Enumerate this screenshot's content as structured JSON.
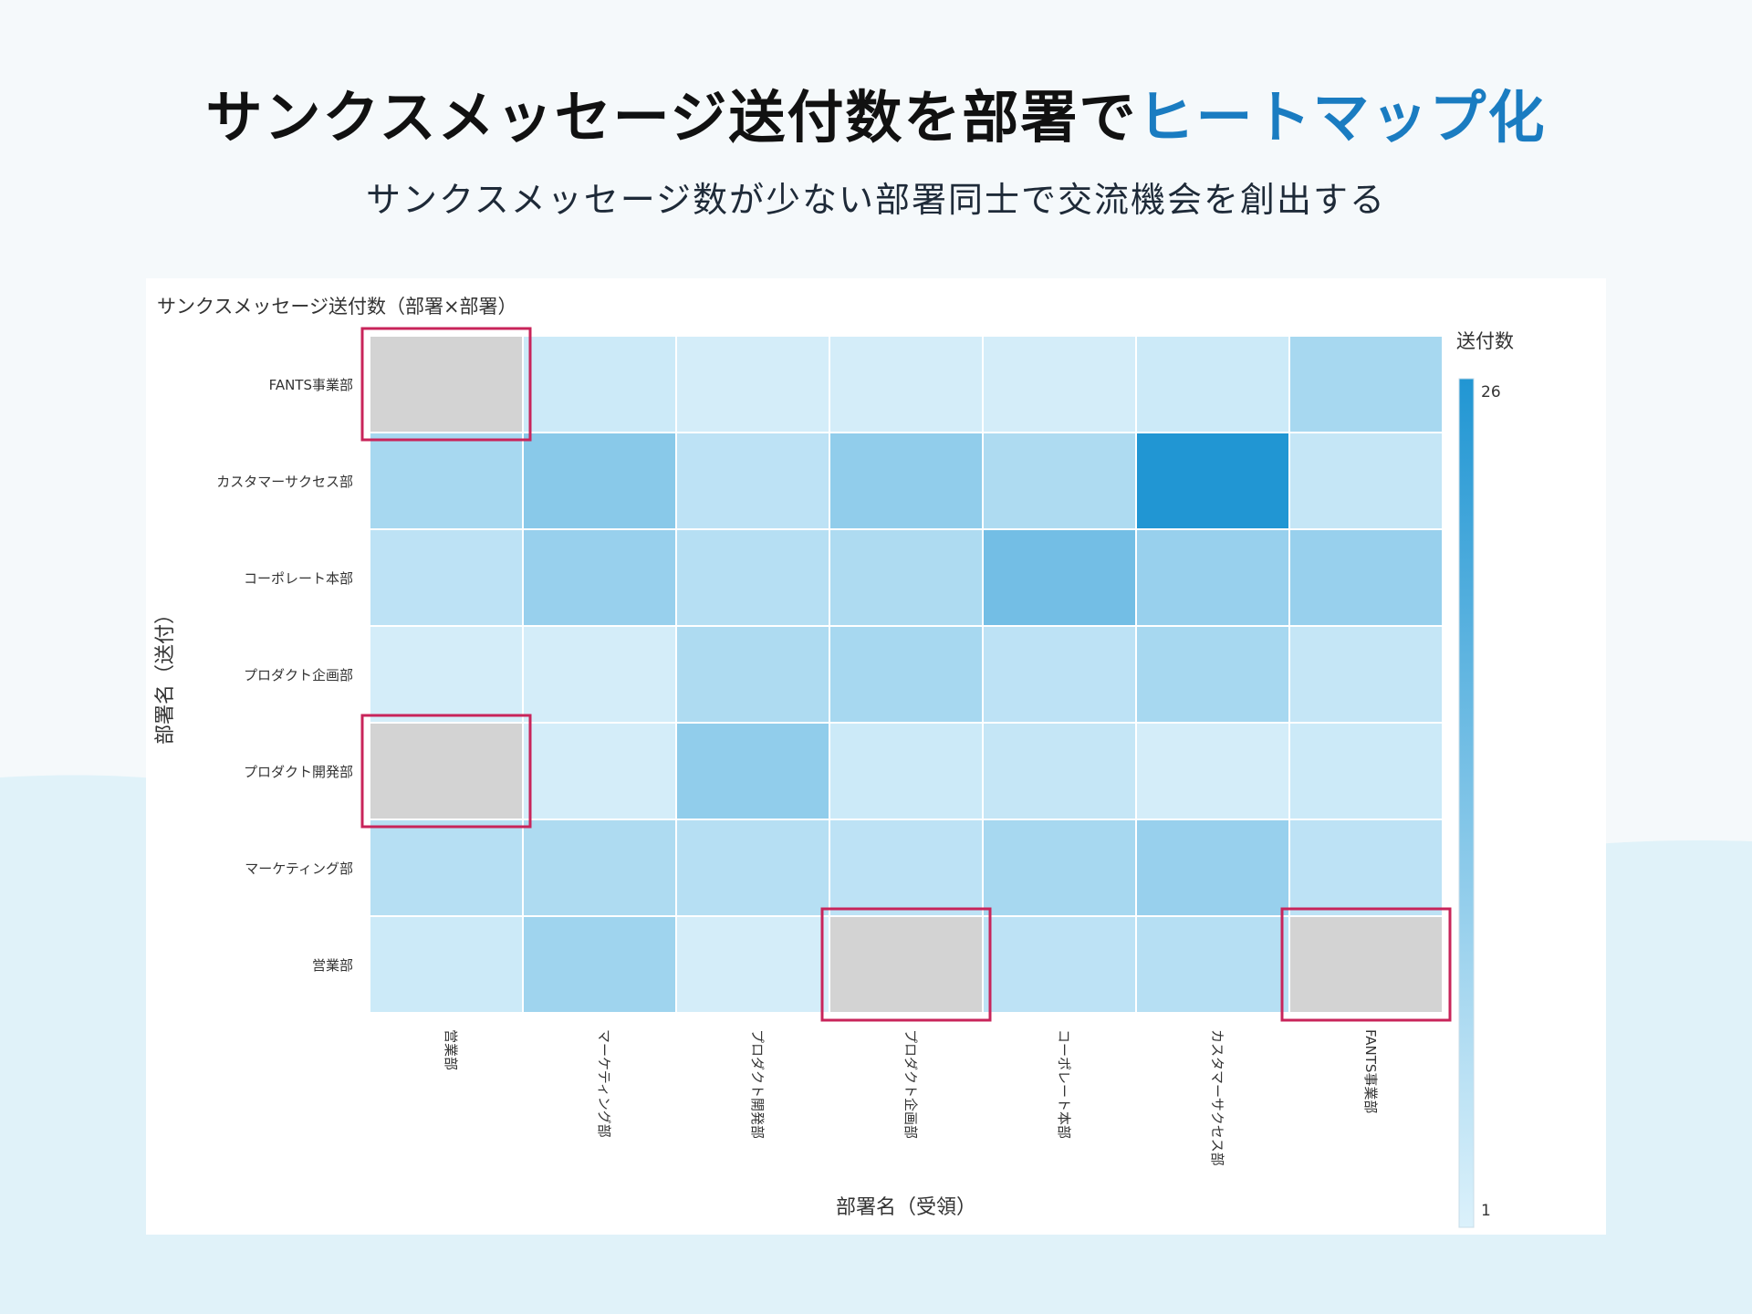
{
  "header": {
    "title_main": "サンクスメッセージ送付数を部署で",
    "title_accent": "ヒートマップ化",
    "subtitle": "サンクスメッセージ数が少ない部署同士で交流機会を創出する"
  },
  "colors": {
    "accent": "#1a7cc1",
    "cell_low": "#dbf1fb",
    "cell_high": "#2196d3",
    "masked_cell": "#d3d3d3",
    "highlight_border": "#c8245a"
  },
  "chart_data": {
    "type": "heatmap",
    "title": "サンクスメッセージ送付数（部署×部署）",
    "xlabel": "部署名（受領）",
    "ylabel": "部署名（送付）",
    "x_categories": [
      "営業部",
      "マーケティング部",
      "プロダクト開発部",
      "プロダクト企画部",
      "コーポレート本部",
      "カスタマーサクセス部",
      "FANTS事業部"
    ],
    "y_categories": [
      "FANTS事業部",
      "カスタマーサクセス部",
      "コーポレート本部",
      "プロダクト企画部",
      "プロダクト開発部",
      "マーケティング部",
      "営業部"
    ],
    "values": [
      [
        null,
        3,
        2,
        2,
        2,
        3,
        8
      ],
      [
        8,
        12,
        5,
        11,
        7,
        26,
        4
      ],
      [
        5,
        10,
        6,
        7,
        15,
        10,
        10
      ],
      [
        2,
        2,
        7,
        8,
        5,
        8,
        4
      ],
      [
        null,
        2,
        11,
        3,
        4,
        2,
        3
      ],
      [
        6,
        7,
        6,
        5,
        8,
        10,
        5
      ],
      [
        3,
        9,
        2,
        null,
        5,
        6,
        null
      ]
    ],
    "highlighted_cells": [
      [
        0,
        0
      ],
      [
        4,
        0
      ],
      [
        6,
        3
      ],
      [
        6,
        6
      ]
    ],
    "legend": {
      "title": "送付数",
      "min": 1,
      "max": 26,
      "min_label": "1",
      "max_label": "26",
      "placement": "right"
    }
  }
}
